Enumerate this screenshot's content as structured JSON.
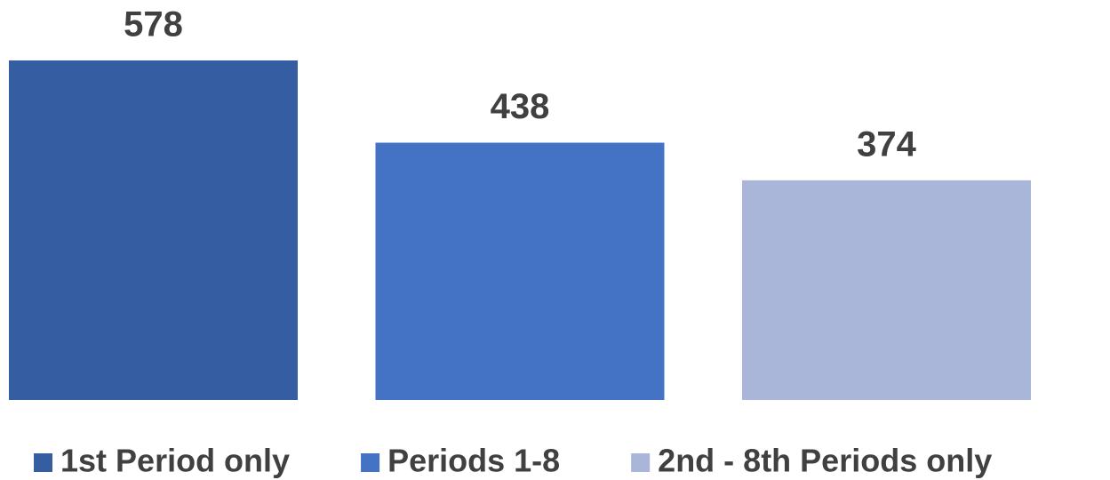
{
  "chart_data": {
    "type": "bar",
    "series": [
      {
        "name": "1st Period only",
        "color": "#345ea1",
        "values": [
          578
        ]
      },
      {
        "name": "Periods 1-8",
        "color": "#4472c4",
        "values": [
          438
        ]
      },
      {
        "name": "2nd - 8th Periods only",
        "color": "#a9b6da",
        "values": [
          374
        ]
      }
    ],
    "legend": "bottom"
  }
}
